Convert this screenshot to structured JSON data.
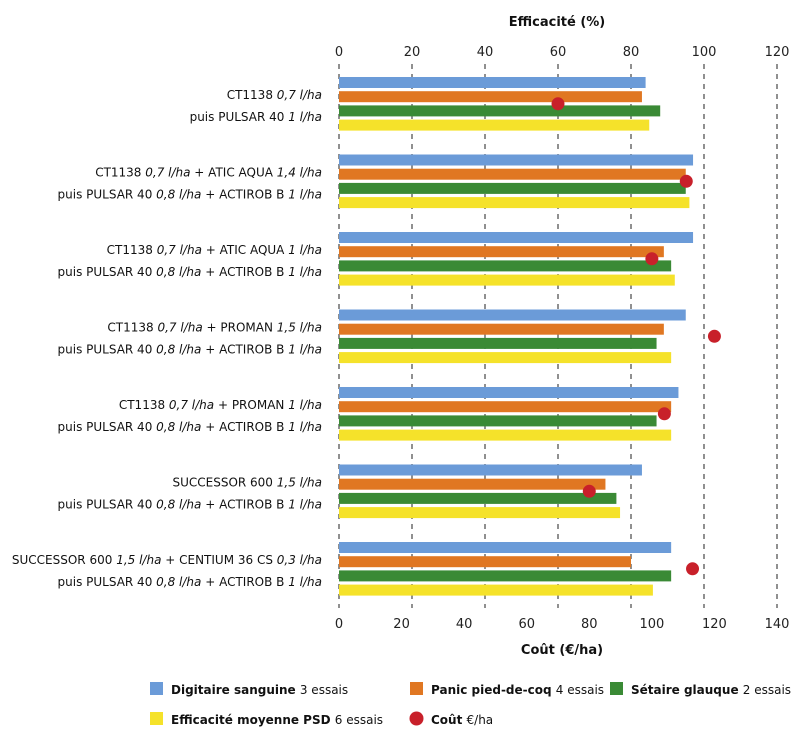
{
  "chart_data": {
    "type": "bar",
    "orientation": "horizontal",
    "top_axis": {
      "label": "Efficacité (%)",
      "ticks": [
        "0",
        "20",
        "40",
        "60",
        "80",
        "100",
        "120"
      ],
      "range": [
        0,
        120
      ]
    },
    "bottom_axis": {
      "label": "Coût (€/ha)",
      "ticks": [
        "0",
        "20",
        "40",
        "60",
        "80",
        "100",
        "120",
        "140"
      ],
      "range": [
        0,
        140
      ]
    },
    "grid": "vertical dashed",
    "legend_position": "bottom",
    "categories": [
      {
        "line1": [
          {
            "t": "CT1138 ",
            "s": "n"
          },
          {
            "t": "0,7 l/ha",
            "s": "i"
          }
        ],
        "line2": [
          {
            "t": "puis PULSAR 40 ",
            "s": "n"
          },
          {
            "t": "1 l/ha",
            "s": "i"
          }
        ]
      },
      {
        "line1": [
          {
            "t": "CT1138 ",
            "s": "n"
          },
          {
            "t": "0,7 l/ha",
            "s": "i"
          },
          {
            "t": " + ATIC AQUA ",
            "s": "n"
          },
          {
            "t": "1,4 l/ha",
            "s": "i"
          }
        ],
        "line2": [
          {
            "t": "puis PULSAR 40 ",
            "s": "n"
          },
          {
            "t": "0,8 l/ha",
            "s": "i"
          },
          {
            "t": " + ACTIROB B ",
            "s": "n"
          },
          {
            "t": "1 l/ha",
            "s": "i"
          }
        ]
      },
      {
        "line1": [
          {
            "t": "CT1138 ",
            "s": "n"
          },
          {
            "t": "0,7 l/ha",
            "s": "i"
          },
          {
            "t": " + ATIC AQUA ",
            "s": "n"
          },
          {
            "t": "1 l/ha",
            "s": "i"
          }
        ],
        "line2": [
          {
            "t": "puis PULSAR 40 ",
            "s": "n"
          },
          {
            "t": "0,8 l/ha",
            "s": "i"
          },
          {
            "t": " + ACTIROB B ",
            "s": "n"
          },
          {
            "t": "1 l/ha",
            "s": "i"
          }
        ]
      },
      {
        "line1": [
          {
            "t": "CT1138 ",
            "s": "n"
          },
          {
            "t": "0,7 l/ha",
            "s": "i"
          },
          {
            "t": " + PROMAN ",
            "s": "n"
          },
          {
            "t": "1,5 l/ha",
            "s": "i"
          }
        ],
        "line2": [
          {
            "t": "puis PULSAR 40 ",
            "s": "n"
          },
          {
            "t": "0,8 l/ha",
            "s": "i"
          },
          {
            "t": " + ACTIROB B ",
            "s": "n"
          },
          {
            "t": "1 l/ha",
            "s": "i"
          }
        ]
      },
      {
        "line1": [
          {
            "t": "CT1138 ",
            "s": "n"
          },
          {
            "t": "0,7 l/ha",
            "s": "i"
          },
          {
            "t": " + PROMAN ",
            "s": "n"
          },
          {
            "t": "1 l/ha",
            "s": "i"
          }
        ],
        "line2": [
          {
            "t": "puis PULSAR 40 ",
            "s": "n"
          },
          {
            "t": "0,8 l/ha",
            "s": "i"
          },
          {
            "t": " + ACTIROB B ",
            "s": "n"
          },
          {
            "t": "1 l/ha",
            "s": "i"
          }
        ]
      },
      {
        "line1": [
          {
            "t": "SUCCESSOR 600 ",
            "s": "n"
          },
          {
            "t": "1,5 l/ha",
            "s": "i"
          }
        ],
        "line2": [
          {
            "t": "puis PULSAR 40 ",
            "s": "n"
          },
          {
            "t": "0,8 l/ha",
            "s": "i"
          },
          {
            "t": " + ACTIROB B ",
            "s": "n"
          },
          {
            "t": "1 l/ha",
            "s": "i"
          }
        ]
      },
      {
        "line1": [
          {
            "t": "SUCCESSOR 600 ",
            "s": "n"
          },
          {
            "t": "1,5 l/ha",
            "s": "i"
          },
          {
            "t": " + CENTIUM 36 CS ",
            "s": "n"
          },
          {
            "t": "0,3 l/ha",
            "s": "i"
          }
        ],
        "line2": [
          {
            "t": "puis PULSAR 40 ",
            "s": "n"
          },
          {
            "t": "0,8 l/ha",
            "s": "i"
          },
          {
            "t": " + ACTIROB B ",
            "s": "n"
          },
          {
            "t": "1 l/ha",
            "s": "i"
          }
        ]
      }
    ],
    "series": [
      {
        "name": "Digitaire sanguine",
        "note": "3 essais",
        "color": "#6b9bd8",
        "values": [
          84,
          97,
          97,
          95,
          93,
          83,
          91
        ]
      },
      {
        "name": "Panic pied-de-coq",
        "note": "4 essais",
        "color": "#e07722",
        "values": [
          83,
          95,
          89,
          89,
          91,
          73,
          80
        ]
      },
      {
        "name": "Sétaire glauque",
        "note": "2 essais",
        "color": "#3a8a35",
        "values": [
          88,
          95,
          91,
          87,
          87,
          76,
          91
        ]
      },
      {
        "name": "Efficacité moyenne PSD",
        "note": "6 essais",
        "color": "#f5e22a",
        "values": [
          85,
          96,
          92,
          91,
          91,
          77,
          86
        ]
      }
    ],
    "cost": {
      "name": "Coût",
      "note": "€/ha",
      "color": "#c8202a",
      "values": [
        70,
        111,
        100,
        120,
        104,
        80,
        113
      ]
    }
  }
}
